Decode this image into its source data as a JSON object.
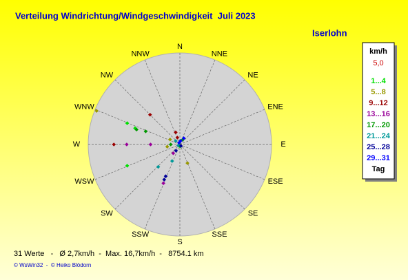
{
  "chart_data": {
    "type": "polar-scatter",
    "title": "Verteilung Windrichtung/Windgeschwindigkeit  Juli 2023",
    "subtitle": "Iserlohn",
    "angular_labels": [
      "N",
      "NNE",
      "NE",
      "ENE",
      "E",
      "ESE",
      "SE",
      "SSE",
      "S",
      "SSW",
      "SW",
      "WSW",
      "W",
      "WNW",
      "NW",
      "NNW"
    ],
    "rlim": [
      0,
      5
    ],
    "rticks": [
      {
        "value": 5,
        "label": "5,0"
      }
    ],
    "legend_title": "km/h",
    "legend_footer": "Tag",
    "series": [
      {
        "name": "1...4",
        "color": "#00e000",
        "directions": [
          292,
          290,
          248,
          180
        ],
        "values": [
          3.1,
          2.6,
          3.1,
          0.1
        ]
      },
      {
        "name": "5...8",
        "color": "#999900",
        "directions": [
          292,
          158,
          297,
          260
        ],
        "values": [
          4.9,
          1.1,
          0.6,
          0.7
        ]
      },
      {
        "name": "9...12",
        "color": "#990000",
        "directions": [
          315,
          270,
          341,
          340
        ],
        "values": [
          2.3,
          3.6,
          0.7,
          0.4
        ]
      },
      {
        "name": "13...16",
        "color": "#990099",
        "directions": [
          270,
          270,
          217,
          203
        ],
        "values": [
          2.9,
          1.6,
          0.6,
          2.3
        ]
      },
      {
        "name": "17...20",
        "color": "#009900",
        "directions": [
          30,
          270,
          291,
          289
        ],
        "values": [
          0.3,
          0.5,
          2.0,
          2.5
        ]
      },
      {
        "name": "21...24",
        "color": "#009999",
        "directions": [
          224,
          205,
          236,
          310
        ],
        "values": [
          1.7,
          1.0,
          0.1,
          0.3
        ]
      },
      {
        "name": "25...28",
        "color": "#000099",
        "directions": [
          204,
          204,
          212,
          146
        ],
        "values": [
          2.1,
          1.9,
          0.4,
          0.1
        ]
      },
      {
        "name": "29...31",
        "color": "#0000ff",
        "directions": [
          11,
          32,
          333
        ],
        "values": [
          0.2,
          0.4,
          0.1
        ]
      }
    ],
    "footer": "31 Werte   -   Ø 2,7km/h  -  Max. 16,7km/h  -   8754.1 km",
    "credit": "© WsWin32  -  © Heiko Blödorn"
  }
}
